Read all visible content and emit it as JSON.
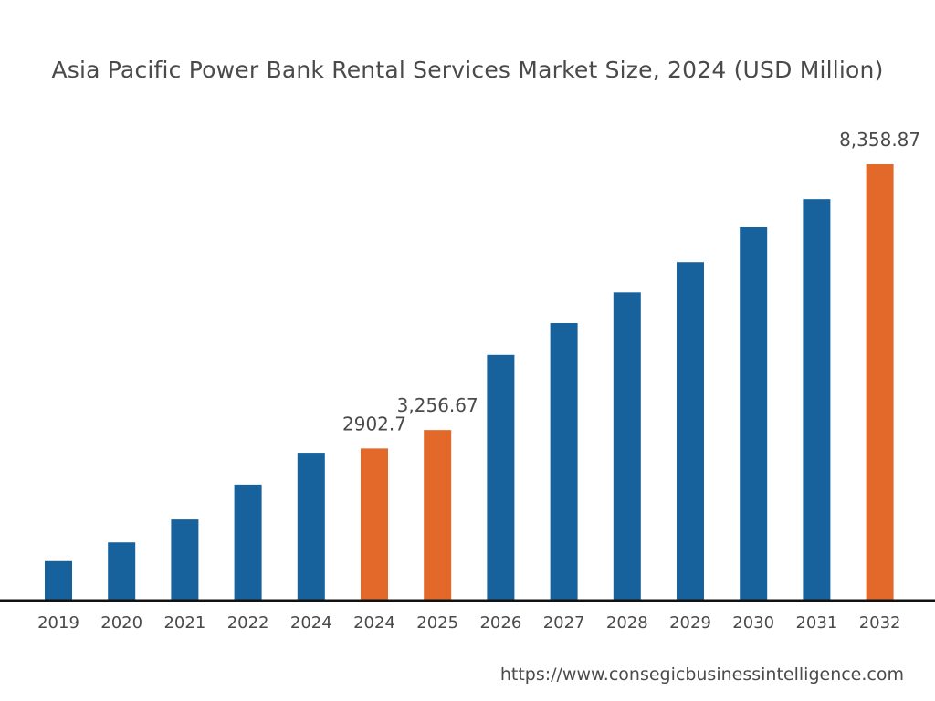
{
  "chart_data": {
    "type": "bar",
    "title": "Asia Pacific Power Bank Rental Services Market Size, 2024 (USD Million)",
    "xlabel": "",
    "ylabel": "",
    "categories": [
      "2019",
      "2020",
      "2021",
      "2022",
      "2024",
      "2024",
      "2025",
      "2026",
      "2027",
      "2028",
      "2029",
      "2030",
      "2031",
      "2032"
    ],
    "values": [
      740,
      1100,
      1540,
      2210,
      2820,
      2902.7,
      3256.67,
      4700,
      5310,
      5900,
      6480,
      7150,
      7690,
      8358.87
    ],
    "data_labels": [
      "",
      "",
      "",
      "",
      "",
      "2902.7",
      "3,256.67",
      "",
      "",
      "",
      "",
      "",
      "",
      "8,358.87"
    ],
    "highlighted": [
      false,
      false,
      false,
      false,
      false,
      true,
      true,
      false,
      false,
      false,
      false,
      false,
      false,
      true
    ],
    "ylim": [
      0,
      8358.87
    ],
    "grid": false,
    "legend": "none",
    "colors": {
      "default": "#17629c",
      "highlight": "#e2692a",
      "axis": "#111111",
      "text": "#4a4a4a"
    }
  },
  "source": "https://www.consegicbusinessintelligence.com"
}
